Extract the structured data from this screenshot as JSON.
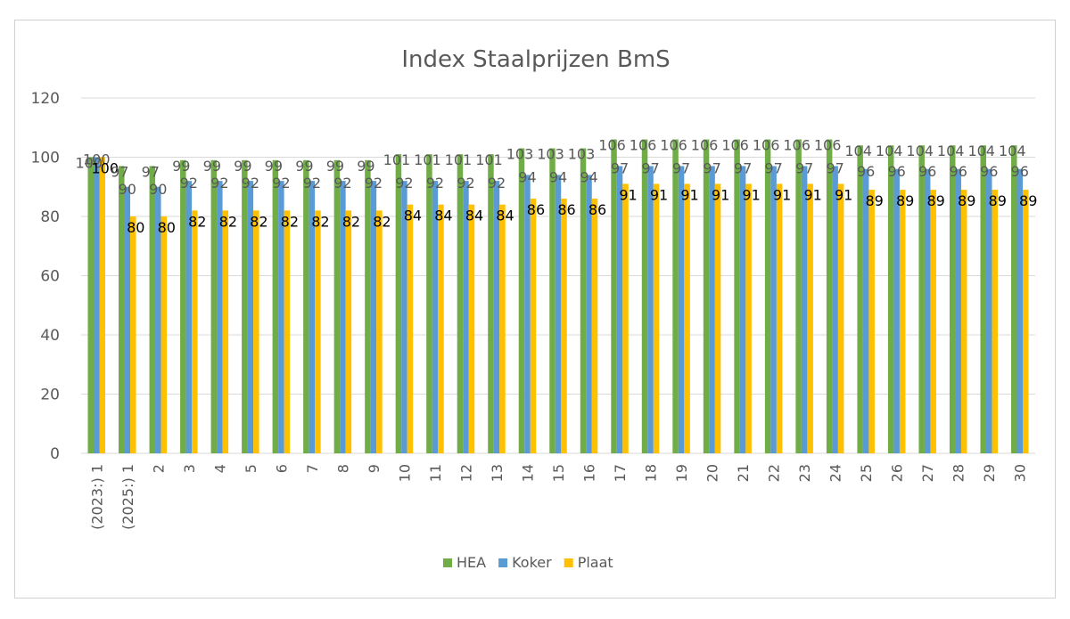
{
  "chart_data": {
    "type": "bar",
    "title": "Index Staalprijzen BmS",
    "xlabel": "",
    "ylabel": "",
    "ylim": [
      0,
      120
    ],
    "yticks": [
      0,
      20,
      40,
      60,
      80,
      100,
      120
    ],
    "grid": true,
    "legend_position": "bottom",
    "categories": [
      "(2023:) 1",
      "(2025:) 1",
      "2",
      "3",
      "4",
      "5",
      "6",
      "7",
      "8",
      "9",
      "10",
      "11",
      "12",
      "13",
      "14",
      "15",
      "16",
      "17",
      "18",
      "19",
      "20",
      "21",
      "22",
      "23",
      "24",
      "25",
      "26",
      "27",
      "28",
      "29",
      "30"
    ],
    "series": [
      {
        "name": "HEA",
        "color": "#70AD47",
        "label_color": "#595959",
        "values": [
          100,
          97,
          97,
          99,
          99,
          99,
          99,
          99,
          99,
          99,
          101,
          101,
          101,
          101,
          103,
          103,
          103,
          106,
          106,
          106,
          106,
          106,
          106,
          106,
          106,
          104,
          104,
          104,
          104,
          104,
          104
        ]
      },
      {
        "name": "Koker",
        "color": "#5B9BD5",
        "label_color": "#595959",
        "values": [
          100,
          90,
          90,
          92,
          92,
          92,
          92,
          92,
          92,
          92,
          92,
          92,
          92,
          92,
          94,
          94,
          94,
          97,
          97,
          97,
          97,
          97,
          97,
          97,
          97,
          96,
          96,
          96,
          96,
          96,
          96
        ]
      },
      {
        "name": "Plaat",
        "color": "#FFC000",
        "label_color": "#000000",
        "values": [
          100,
          80,
          80,
          82,
          82,
          82,
          82,
          82,
          82,
          82,
          84,
          84,
          84,
          84,
          86,
          86,
          86,
          91,
          91,
          91,
          91,
          91,
          91,
          91,
          91,
          89,
          89,
          89,
          89,
          89,
          89
        ]
      }
    ]
  }
}
